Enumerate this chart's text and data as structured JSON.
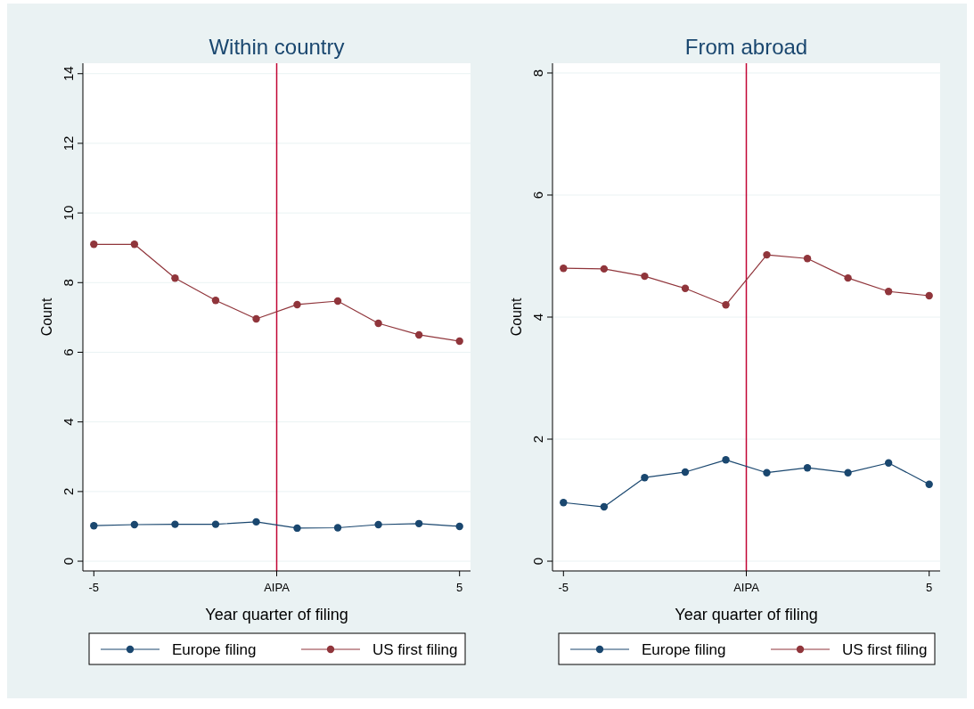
{
  "chart_data": [
    {
      "type": "line",
      "title": "Within country",
      "xlabel": "Year quarter of filing",
      "ylabel": "Count",
      "x": [
        -5,
        -3.89,
        -2.78,
        -1.67,
        -0.56,
        0.56,
        1.67,
        2.78,
        3.89,
        5
      ],
      "xlim": [
        -5.3,
        5.3
      ],
      "xticks": [
        {
          "value": -5,
          "label": "-5"
        },
        {
          "value": 0,
          "label": "AIPA"
        },
        {
          "value": 5,
          "label": "5"
        }
      ],
      "ylim": [
        -0.28,
        14.3
      ],
      "yticks": [
        0,
        2,
        4,
        6,
        8,
        10,
        12,
        14
      ],
      "grid": "y",
      "legend": "bottom",
      "marker": "circle",
      "line_style": "solid",
      "ref_lines": [
        {
          "axis": "x",
          "value": 0,
          "color": "#c10534"
        }
      ],
      "series": [
        {
          "name": "Europe filing",
          "color": "#1a476f",
          "values": [
            1.02,
            1.05,
            1.06,
            1.06,
            1.13,
            0.95,
            0.96,
            1.05,
            1.08,
            1.0
          ]
        },
        {
          "name": "US first filing",
          "color": "#90353b",
          "values": [
            9.1,
            9.1,
            8.13,
            7.49,
            6.96,
            7.37,
            7.47,
            6.83,
            6.5,
            6.32
          ]
        }
      ]
    },
    {
      "type": "line",
      "title": "From abroad",
      "xlabel": "Year quarter of filing",
      "ylabel": "Count",
      "x": [
        -5,
        -3.89,
        -2.78,
        -1.67,
        -0.56,
        0.56,
        1.67,
        2.78,
        3.89,
        5
      ],
      "xlim": [
        -5.3,
        5.3
      ],
      "xticks": [
        {
          "value": -5,
          "label": "-5"
        },
        {
          "value": 0,
          "label": "AIPA"
        },
        {
          "value": 5,
          "label": "5"
        }
      ],
      "ylim": [
        -0.16,
        8.16
      ],
      "yticks": [
        0,
        2,
        4,
        6,
        8
      ],
      "grid": "y",
      "legend": "bottom",
      "marker": "circle",
      "line_style": "solid",
      "ref_lines": [
        {
          "axis": "x",
          "value": 0,
          "color": "#c10534"
        }
      ],
      "series": [
        {
          "name": "Europe filing",
          "color": "#1a476f",
          "values": [
            0.96,
            0.89,
            1.37,
            1.46,
            1.66,
            1.45,
            1.53,
            1.45,
            1.61,
            1.26
          ]
        },
        {
          "name": "US first filing",
          "color": "#90353b",
          "values": [
            4.8,
            4.79,
            4.67,
            4.47,
            4.2,
            5.02,
            4.96,
            4.64,
            4.42,
            4.35
          ]
        }
      ]
    }
  ]
}
